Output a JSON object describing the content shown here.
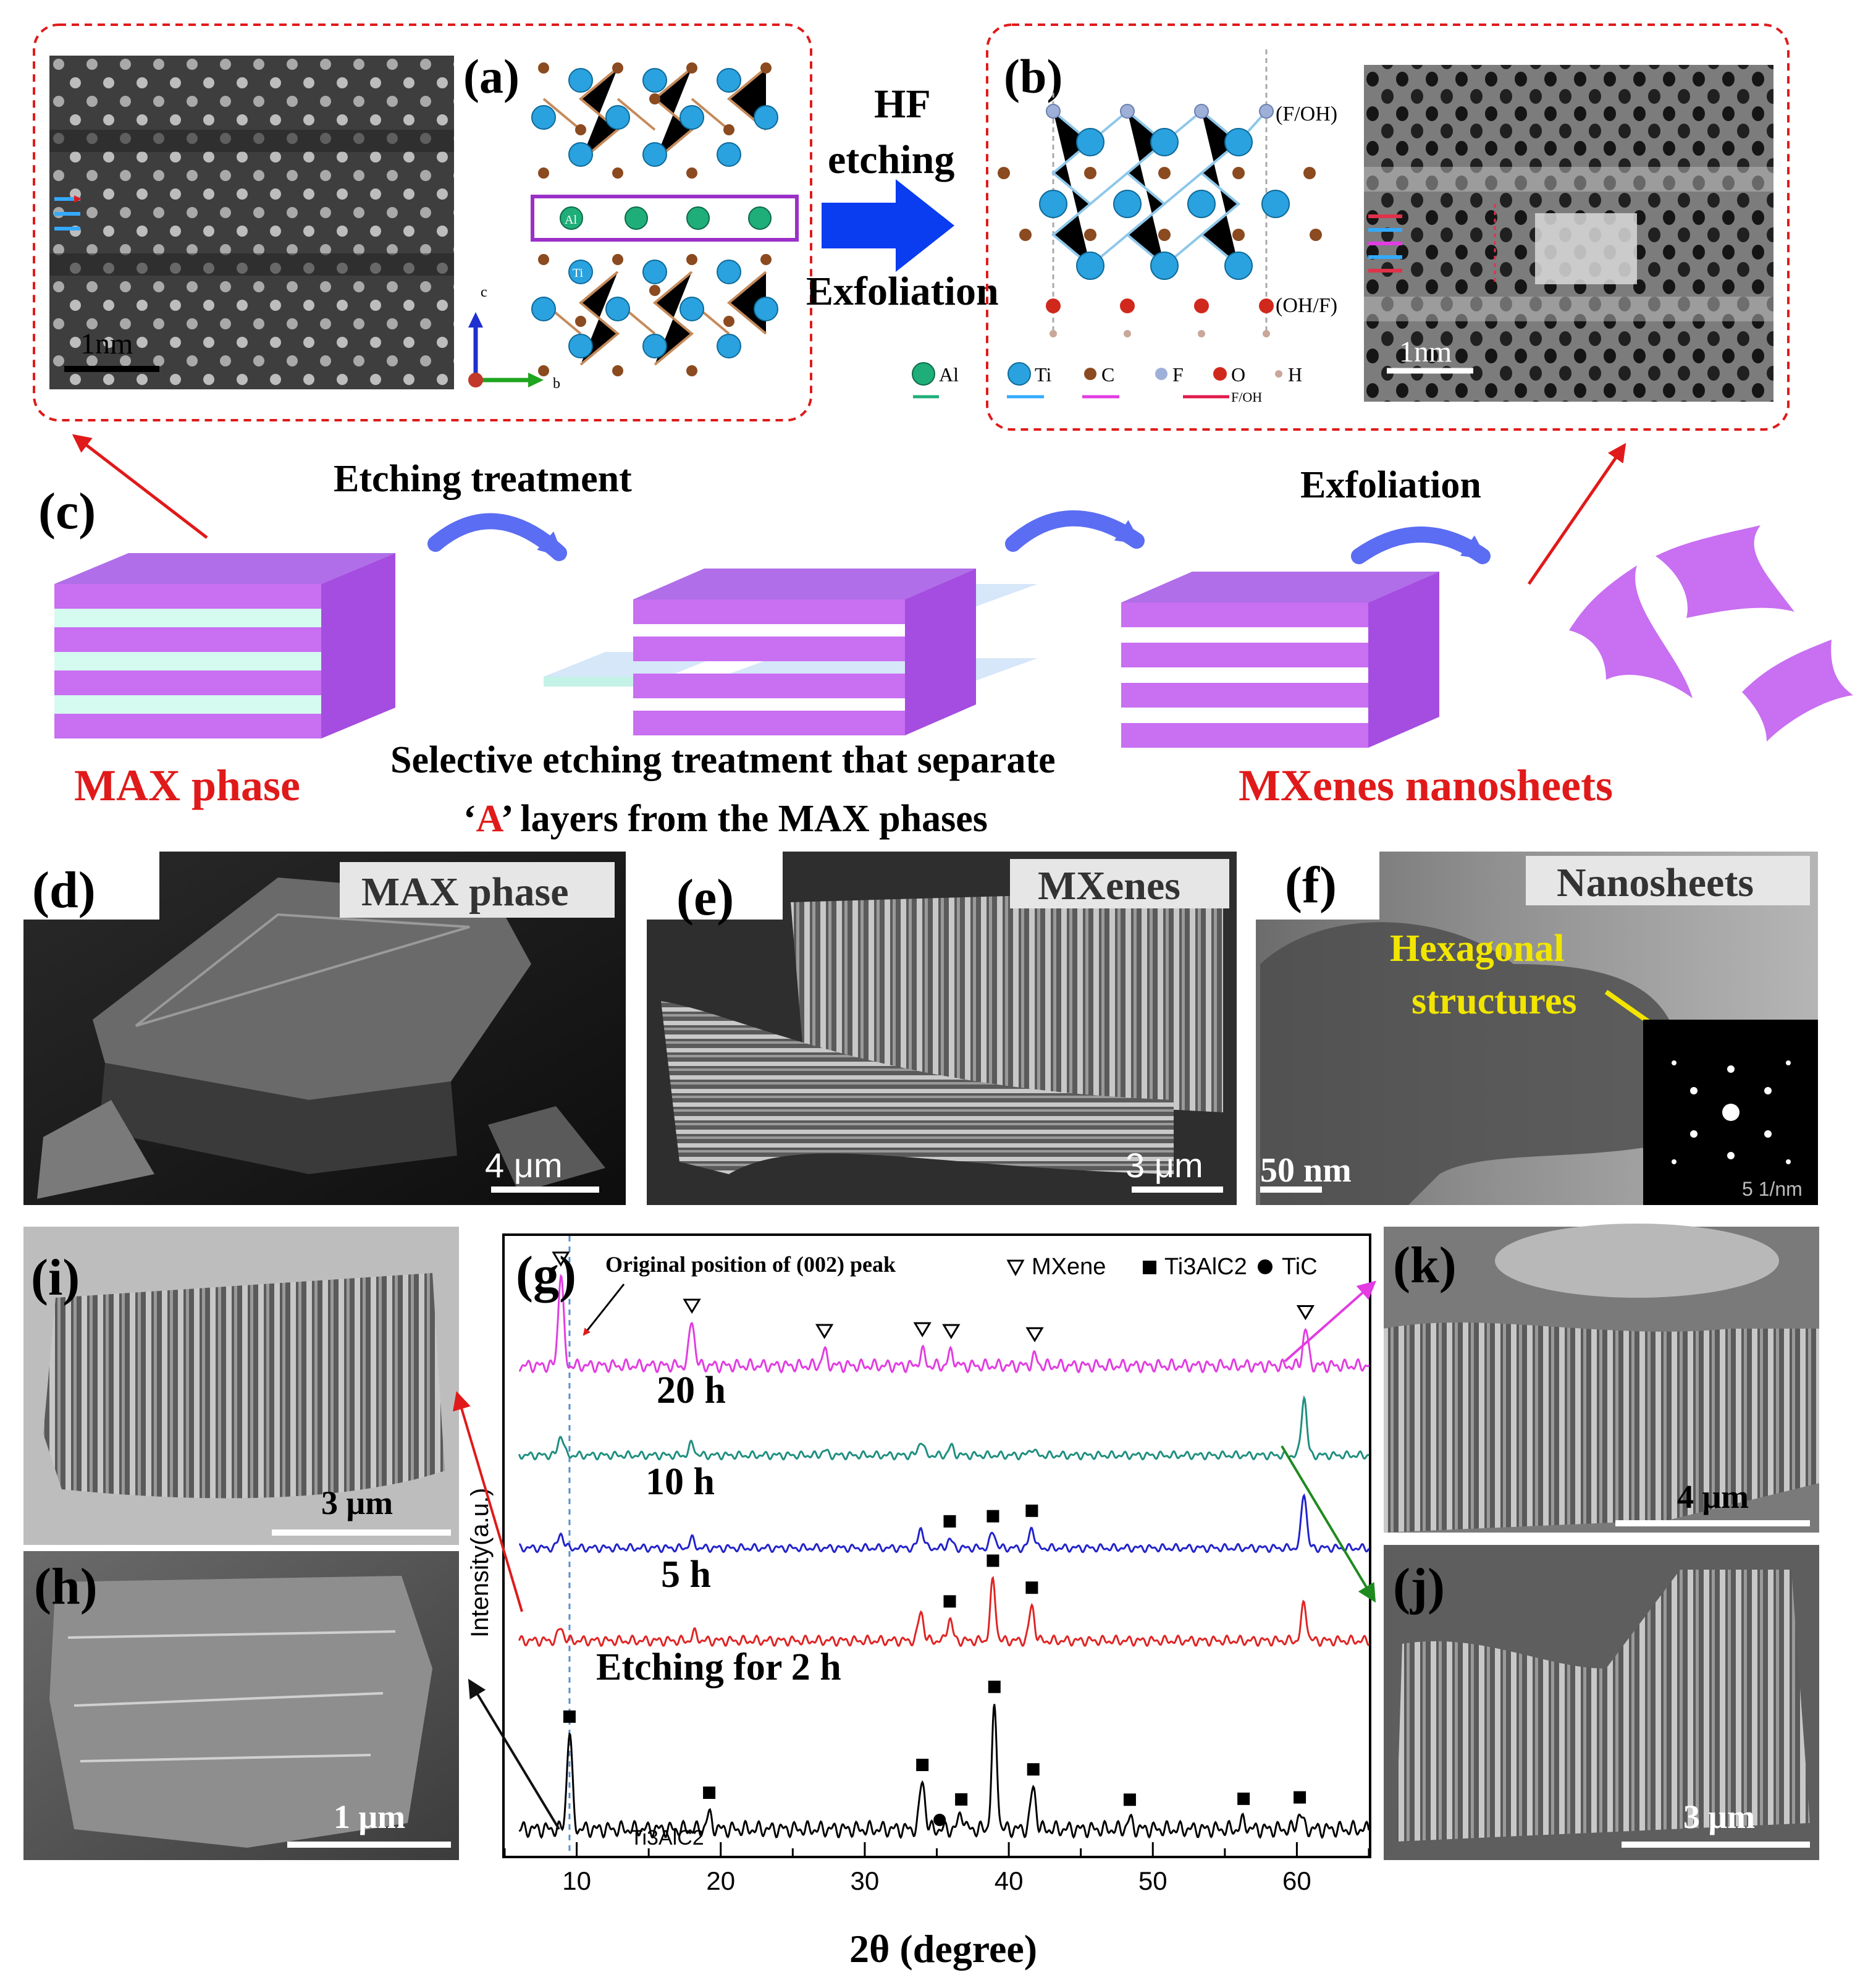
{
  "figure": {
    "panel_a": {
      "label": "(a)",
      "scale_bar": "1nm",
      "atom_ti": "Ti",
      "atom_al": "Al",
      "axis_c": "c",
      "axis_b": "b"
    },
    "transform": {
      "line1": "HF",
      "line2": "etching",
      "line3": "Exfoliation"
    },
    "panel_b": {
      "label": "(b)",
      "top_term": "(F/OH)",
      "bottom_term": "(OH/F)",
      "scale_bar": "1nm",
      "legend": {
        "al": "Al",
        "ti": "Ti",
        "c": "C",
        "f": "F",
        "o": "O",
        "h": "H",
        "arrow_note": "F/OH"
      }
    },
    "panel_c": {
      "label": "(c)",
      "step1": "Etching treatment",
      "step2": "Exfoliation",
      "max_label": "MAX phase",
      "mxene_label": "MXenes nanosheets",
      "caption_line1": "Selective etching treatment that separate",
      "caption_quote_open": "‘",
      "caption_a": "A",
      "caption_quote_close": "’",
      "caption_line2_rest": "  layers from the MAX phases"
    },
    "panel_d": {
      "label": "(d)",
      "tag": "MAX phase",
      "scale_bar": "4 μm"
    },
    "panel_e": {
      "label": "(e)",
      "tag": "MXenes",
      "scale_bar": "3 μm"
    },
    "panel_f": {
      "label": "(f)",
      "tag": "Nanosheets",
      "annot_line1": "Hexagonal",
      "annot_line2": "structures",
      "scale_bar": "50 nm",
      "saed_scale": "5 1/nm"
    },
    "panel_i": {
      "label": "(i)",
      "scale_bar": "3 μm"
    },
    "panel_h": {
      "label": "(h)",
      "scale_bar": "1 μm"
    },
    "panel_k": {
      "label": "(k)",
      "scale_bar": "4 μm"
    },
    "panel_j": {
      "label": "(j)",
      "scale_bar": "3 μm"
    },
    "panel_g": {
      "label": "(g)",
      "annotation": "Original position of (002) peak",
      "legend_mxene": "MXene",
      "legend_ti3alc2": "Ti3AlC2",
      "legend_tic": "TiC",
      "ylabel": "Intensity(a.u.)",
      "xlabel": "2θ  (degree)",
      "curve_20h": "20 h",
      "curve_10h": "10 h",
      "curve_5h": "5 h",
      "curve_2h": "Etching for 2 h",
      "curve_ti3alc2": "Ti3AlC2"
    }
  },
  "chart_data": {
    "type": "line",
    "title": "",
    "xlabel": "2θ (degree)",
    "ylabel": "Intensity(a.u.)",
    "xlim": [
      5,
      65
    ],
    "xticks": [
      10,
      20,
      30,
      40,
      50,
      60
    ],
    "reference_line_x": 9.5,
    "series": [
      {
        "name": "Ti3AlC2",
        "color": "#000000",
        "peaks": [
          [
            9.5,
            0.83
          ],
          [
            19.2,
            0.12
          ],
          [
            34.0,
            0.42
          ],
          [
            36.7,
            0.14
          ],
          [
            39.0,
            1.0
          ],
          [
            41.7,
            0.36
          ],
          [
            48.4,
            0.08
          ],
          [
            56.3,
            0.07
          ],
          [
            60.2,
            0.14
          ]
        ],
        "markers": [
          [
            9.5,
            "square"
          ],
          [
            19.2,
            "square"
          ],
          [
            34.0,
            "square"
          ],
          [
            35.2,
            "circle"
          ],
          [
            36.7,
            "square"
          ],
          [
            39.0,
            "square"
          ],
          [
            41.7,
            "square"
          ],
          [
            48.4,
            "square"
          ],
          [
            56.3,
            "square"
          ],
          [
            60.2,
            "square"
          ]
        ]
      },
      {
        "name": "Etching for 2 h",
        "color": "#e02424",
        "peaks": [
          [
            8.9,
            0.18
          ],
          [
            18.2,
            0.1
          ],
          [
            33.9,
            0.4
          ],
          [
            35.9,
            0.3
          ],
          [
            38.9,
            0.8
          ],
          [
            41.6,
            0.47
          ],
          [
            60.5,
            0.5
          ]
        ],
        "markers": [
          [
            35.9,
            "square"
          ],
          [
            38.9,
            "square"
          ],
          [
            41.6,
            "square"
          ]
        ]
      },
      {
        "name": "5 h",
        "color": "#2222cc",
        "peaks": [
          [
            8.9,
            0.25
          ],
          [
            18.0,
            0.15
          ],
          [
            33.9,
            0.35
          ],
          [
            35.9,
            0.15
          ],
          [
            38.9,
            0.28
          ],
          [
            41.6,
            0.35
          ],
          [
            60.5,
            0.95
          ]
        ],
        "markers": [
          [
            35.9,
            "square"
          ],
          [
            38.9,
            "square"
          ],
          [
            41.6,
            "square"
          ]
        ]
      },
      {
        "name": "10 h",
        "color": "#1f8f80",
        "peaks": [
          [
            8.9,
            0.35
          ],
          [
            18.0,
            0.2
          ],
          [
            27.2,
            0.08
          ],
          [
            33.9,
            0.25
          ],
          [
            36.0,
            0.15
          ],
          [
            41.6,
            0.12
          ],
          [
            60.5,
            1.0
          ]
        ],
        "markers": []
      },
      {
        "name": "20 h",
        "color": "#e23ce2",
        "peaks": [
          [
            8.9,
            1.0
          ],
          [
            18.0,
            0.5
          ],
          [
            27.2,
            0.15
          ],
          [
            34.0,
            0.15
          ],
          [
            36.0,
            0.15
          ],
          [
            41.8,
            0.1
          ],
          [
            60.6,
            0.4
          ]
        ],
        "markers": [
          [
            8.9,
            "triangle"
          ],
          [
            18.0,
            "triangle"
          ],
          [
            27.2,
            "triangle"
          ],
          [
            34.0,
            "triangle"
          ],
          [
            36.0,
            "triangle"
          ],
          [
            41.8,
            "triangle"
          ],
          [
            60.6,
            "triangle"
          ]
        ]
      }
    ]
  }
}
